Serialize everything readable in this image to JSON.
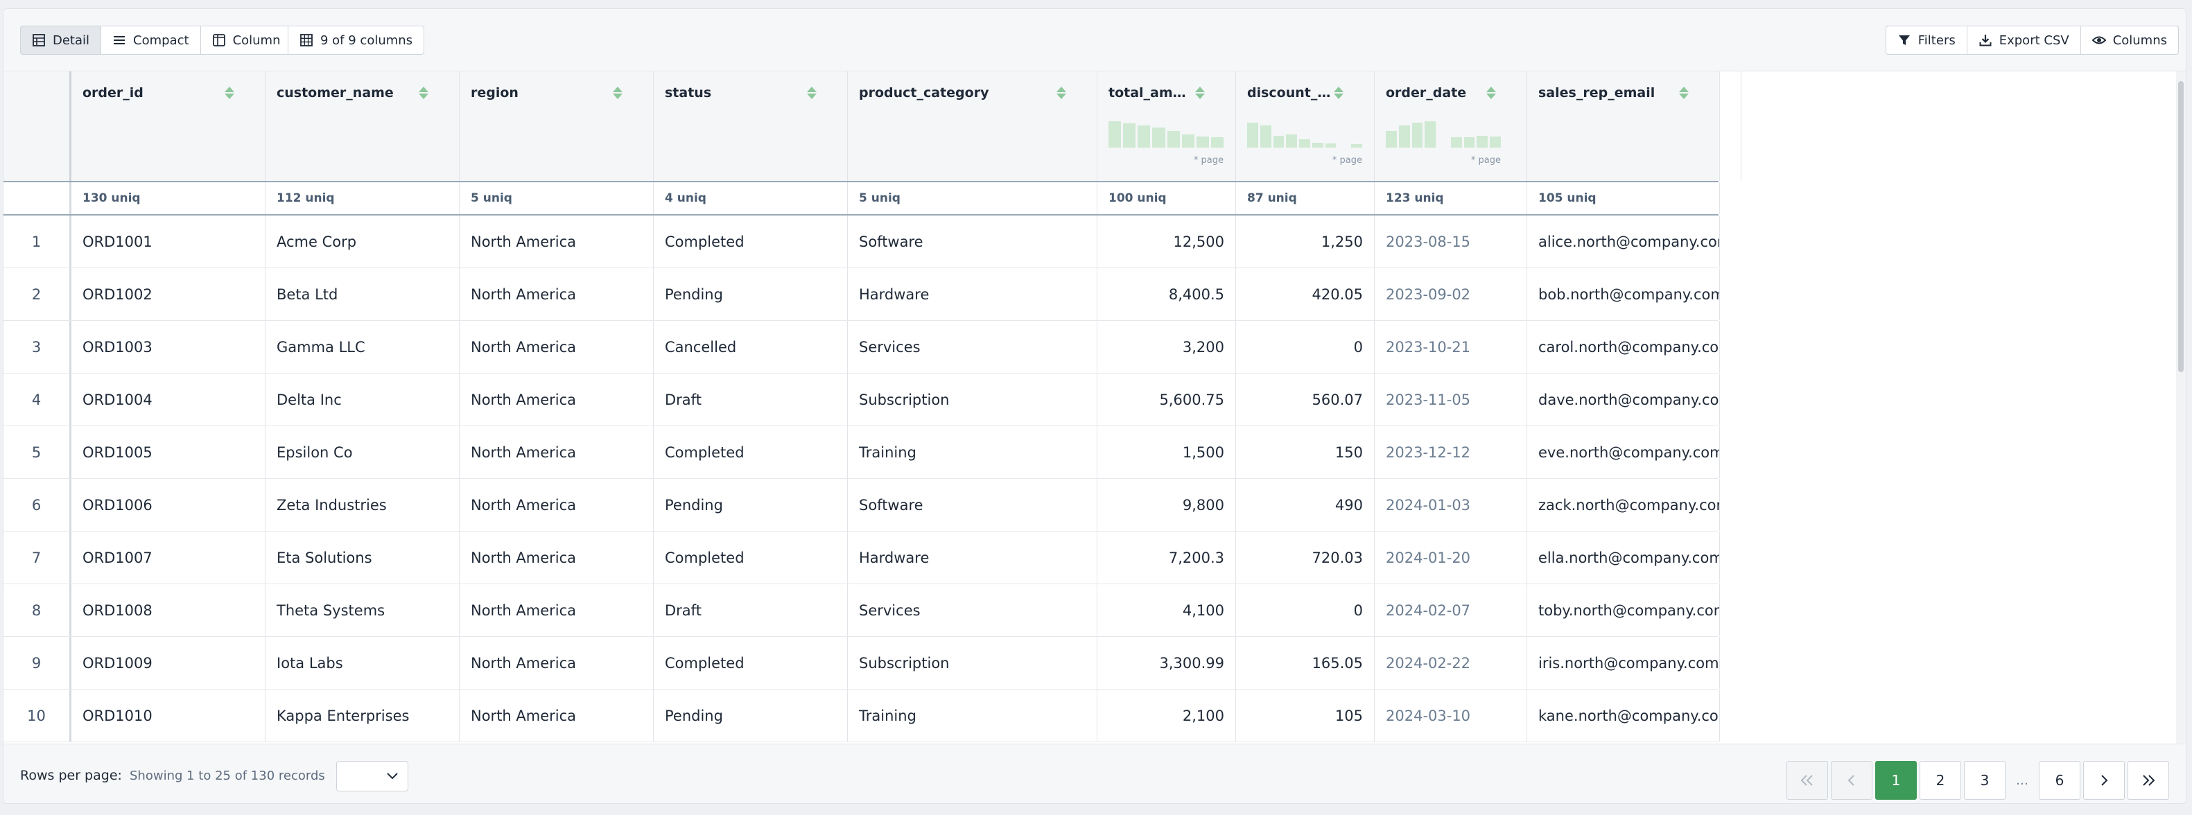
{
  "toolbar": {
    "view_buttons": [
      {
        "label": "Detail",
        "icon": "table-icon",
        "active": true
      },
      {
        "label": "Compact",
        "icon": "list-icon",
        "active": false
      },
      {
        "label": "Column",
        "icon": "columns-icon",
        "active": false
      }
    ],
    "column_count_label": "9 of 9 columns",
    "filters_label": "Filters",
    "export_label": "Export CSV",
    "columns_label": "Columns"
  },
  "columns": [
    {
      "key": "order_id",
      "label": "order_id",
      "uniq": "130 uniq",
      "align": "left"
    },
    {
      "key": "customer_name",
      "label": "customer_name",
      "uniq": "112 uniq",
      "align": "left"
    },
    {
      "key": "region",
      "label": "region",
      "uniq": "5 uniq",
      "align": "left"
    },
    {
      "key": "status",
      "label": "status",
      "uniq": "4 uniq",
      "align": "left"
    },
    {
      "key": "product_category",
      "label": "product_category",
      "uniq": "5 uniq",
      "align": "left"
    },
    {
      "key": "total_amount",
      "label": "total_am…",
      "uniq": "100 uniq",
      "align": "right",
      "histogram": [
        0.65,
        0.6,
        0.55,
        0.5,
        0.42,
        0.32,
        0.28,
        0.25
      ],
      "histogram_note": "* page"
    },
    {
      "key": "discount",
      "label": "discount_…",
      "uniq": "87 uniq",
      "align": "right",
      "histogram": [
        0.62,
        0.55,
        0.3,
        0.32,
        0.2,
        0.12,
        0.1,
        0.0,
        0.08
      ],
      "histogram_note": "* page"
    },
    {
      "key": "order_date",
      "label": "order_date",
      "uniq": "123 uniq",
      "align": "date",
      "histogram": [
        0.42,
        0.55,
        0.62,
        0.66,
        0.0,
        0.25,
        0.25,
        0.3,
        0.28
      ],
      "histogram_note": "* page"
    },
    {
      "key": "sales_rep_email",
      "label": "sales_rep_email",
      "uniq": "105 uniq",
      "align": "left"
    }
  ],
  "rows": [
    {
      "idx": "1",
      "order_id": "ORD1001",
      "customer_name": "Acme Corp",
      "region": "North America",
      "status": "Completed",
      "product_category": "Software",
      "total_amount": "12,500",
      "discount": "1,250",
      "order_date": "2023-08-15",
      "sales_rep_email": "alice.north@company.com"
    },
    {
      "idx": "2",
      "order_id": "ORD1002",
      "customer_name": "Beta Ltd",
      "region": "North America",
      "status": "Pending",
      "product_category": "Hardware",
      "total_amount": "8,400.5",
      "discount": "420.05",
      "order_date": "2023-09-02",
      "sales_rep_email": "bob.north@company.com"
    },
    {
      "idx": "3",
      "order_id": "ORD1003",
      "customer_name": "Gamma LLC",
      "region": "North America",
      "status": "Cancelled",
      "product_category": "Services",
      "total_amount": "3,200",
      "discount": "0",
      "order_date": "2023-10-21",
      "sales_rep_email": "carol.north@company.co…"
    },
    {
      "idx": "4",
      "order_id": "ORD1004",
      "customer_name": "Delta Inc",
      "region": "North America",
      "status": "Draft",
      "product_category": "Subscription",
      "total_amount": "5,600.75",
      "discount": "560.07",
      "order_date": "2023-11-05",
      "sales_rep_email": "dave.north@company.co…"
    },
    {
      "idx": "5",
      "order_id": "ORD1005",
      "customer_name": "Epsilon Co",
      "region": "North America",
      "status": "Completed",
      "product_category": "Training",
      "total_amount": "1,500",
      "discount": "150",
      "order_date": "2023-12-12",
      "sales_rep_email": "eve.north@company.com"
    },
    {
      "idx": "6",
      "order_id": "ORD1006",
      "customer_name": "Zeta Industries",
      "region": "North America",
      "status": "Pending",
      "product_category": "Software",
      "total_amount": "9,800",
      "discount": "490",
      "order_date": "2024-01-03",
      "sales_rep_email": "zack.north@company.com"
    },
    {
      "idx": "7",
      "order_id": "ORD1007",
      "customer_name": "Eta Solutions",
      "region": "North America",
      "status": "Completed",
      "product_category": "Hardware",
      "total_amount": "7,200.3",
      "discount": "720.03",
      "order_date": "2024-01-20",
      "sales_rep_email": "ella.north@company.com"
    },
    {
      "idx": "8",
      "order_id": "ORD1008",
      "customer_name": "Theta Systems",
      "region": "North America",
      "status": "Draft",
      "product_category": "Services",
      "total_amount": "4,100",
      "discount": "0",
      "order_date": "2024-02-07",
      "sales_rep_email": "toby.north@company.com"
    },
    {
      "idx": "9",
      "order_id": "ORD1009",
      "customer_name": "Iota Labs",
      "region": "North America",
      "status": "Completed",
      "product_category": "Subscription",
      "total_amount": "3,300.99",
      "discount": "165.05",
      "order_date": "2024-02-22",
      "sales_rep_email": "iris.north@company.com"
    },
    {
      "idx": "10",
      "order_id": "ORD1010",
      "customer_name": "Kappa Enterprises",
      "region": "North America",
      "status": "Pending",
      "product_category": "Training",
      "total_amount": "2,100",
      "discount": "105",
      "order_date": "2024-03-10",
      "sales_rep_email": "kane.north@company.co…"
    }
  ],
  "footer": {
    "rows_per_page_label": "Rows per page:",
    "showing_text": "Showing 1 to 25 of 130 records",
    "rows_per_page_value": "",
    "pages": [
      "1",
      "2",
      "3"
    ],
    "ellipsis": "…",
    "last_page": "6",
    "current_page": "1"
  },
  "colors": {
    "accent": "#3d9b59",
    "histogram_bar": "#cfe9d3",
    "sort_icon": "#8cc79a",
    "date_text": "#6b7d91"
  }
}
